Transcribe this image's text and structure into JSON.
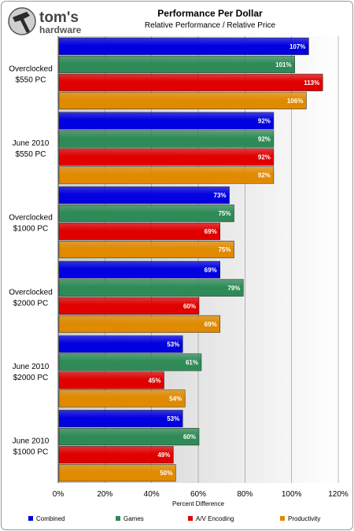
{
  "brand": {
    "name": "tom's",
    "sub": "hardware"
  },
  "chart_data": {
    "type": "bar",
    "orientation": "horizontal",
    "title": "Performance Per Dollar",
    "subtitle": "Relative Performance / Relative Price",
    "xlabel": "Percent Difference",
    "categories": [
      [
        "Overclocked",
        "$550 PC"
      ],
      [
        "June 2010",
        "$550 PC"
      ],
      [
        "Overclocked",
        "$1000 PC"
      ],
      [
        "Overclocked",
        "$2000 PC"
      ],
      [
        "June 2010",
        "$2000 PC"
      ],
      [
        "June 2010",
        "$1000 PC"
      ]
    ],
    "series": [
      {
        "name": "Combined",
        "color": "#0000e0",
        "values": [
          107,
          92,
          73,
          69,
          53,
          53
        ]
      },
      {
        "name": "Games",
        "color": "#2e8b57",
        "values": [
          101,
          92,
          75,
          79,
          61,
          60
        ]
      },
      {
        "name": "A/V Encoding",
        "color": "#e00000",
        "values": [
          113,
          92,
          69,
          60,
          45,
          49
        ]
      },
      {
        "name": "Productivity",
        "color": "#e08a00",
        "values": [
          106,
          92,
          75,
          69,
          54,
          50
        ]
      }
    ],
    "value_suffix": "%",
    "xlim": [
      0,
      120
    ],
    "xticks": [
      "0%",
      "20%",
      "40%",
      "60%",
      "80%",
      "100%",
      "120%"
    ],
    "grid": true,
    "legend_position": "bottom"
  }
}
